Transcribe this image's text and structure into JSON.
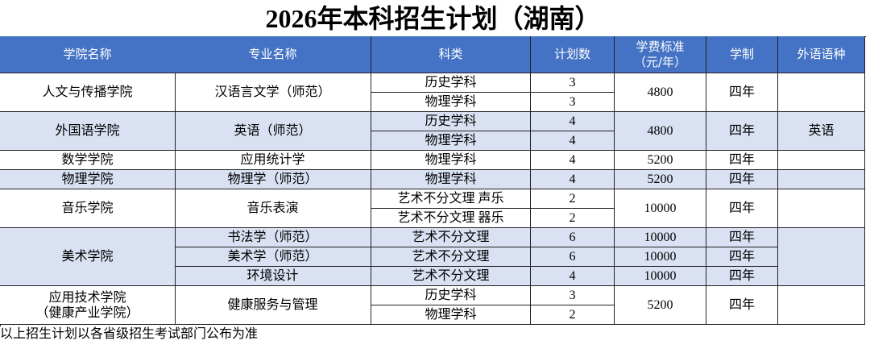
{
  "title": "2026年本科招生计划（湖南）",
  "table": {
    "header": [
      "学院名称",
      "专业名称",
      "科类",
      "计划数",
      "学费标准\n（元/年）",
      "学制",
      "外语语种"
    ],
    "groups": [
      {
        "college": "人文与传播学院",
        "majors": [
          {
            "name": "汉语言文学（师范）",
            "fee": 4800,
            "duration": "四年",
            "subjects": [
              {
                "kind": "历史学科",
                "plan": 3
              },
              {
                "kind": "物理学科",
                "plan": 3
              }
            ]
          }
        ]
      },
      {
        "college": "外国语学院",
        "language": "英语",
        "majors": [
          {
            "name": "英语（师范）",
            "fee": 4800,
            "duration": "四年",
            "subjects": [
              {
                "kind": "历史学科",
                "plan": 4
              },
              {
                "kind": "物理学科",
                "plan": 4
              }
            ]
          }
        ]
      },
      {
        "college": "数学学院",
        "majors": [
          {
            "name": "应用统计学",
            "fee": 5200,
            "duration": "四年",
            "subjects": [
              {
                "kind": "物理学科",
                "plan": 4
              }
            ]
          }
        ]
      },
      {
        "college": "物理学院",
        "majors": [
          {
            "name": "物理学（师范）",
            "fee": 5200,
            "duration": "四年",
            "subjects": [
              {
                "kind": "物理学科",
                "plan": 4
              }
            ]
          }
        ]
      },
      {
        "college": "音乐学院",
        "majors": [
          {
            "name": "音乐表演",
            "fee": 10000,
            "duration": "四年",
            "subjects": [
              {
                "kind": "艺术不分文理  声乐",
                "plan": 2
              },
              {
                "kind": "艺术不分文理  器乐",
                "plan": 2
              }
            ]
          }
        ]
      },
      {
        "college": "美术学院",
        "majors": [
          {
            "name": "书法学（师范）",
            "fee": 10000,
            "duration": "四年",
            "subjects": [
              {
                "kind": "艺术不分文理",
                "plan": 6
              }
            ]
          },
          {
            "name": "美术学（师范）",
            "fee": 10000,
            "duration": "四年",
            "subjects": [
              {
                "kind": "艺术不分文理",
                "plan": 6
              }
            ]
          },
          {
            "name": "环境设计",
            "fee": 10000,
            "duration": "四年",
            "subjects": [
              {
                "kind": "艺术不分文理",
                "plan": 4
              }
            ]
          }
        ]
      },
      {
        "college": "应用技术学院\n（健康产业学院）",
        "majors": [
          {
            "name": "健康服务与管理",
            "fee": 5200,
            "duration": "四年",
            "subjects": [
              {
                "kind": "历史学科",
                "plan": 3
              },
              {
                "kind": "物理学科",
                "plan": 2
              }
            ]
          }
        ]
      }
    ]
  },
  "footer": "以上招生计划以各省级招生考试部门公布为准"
}
